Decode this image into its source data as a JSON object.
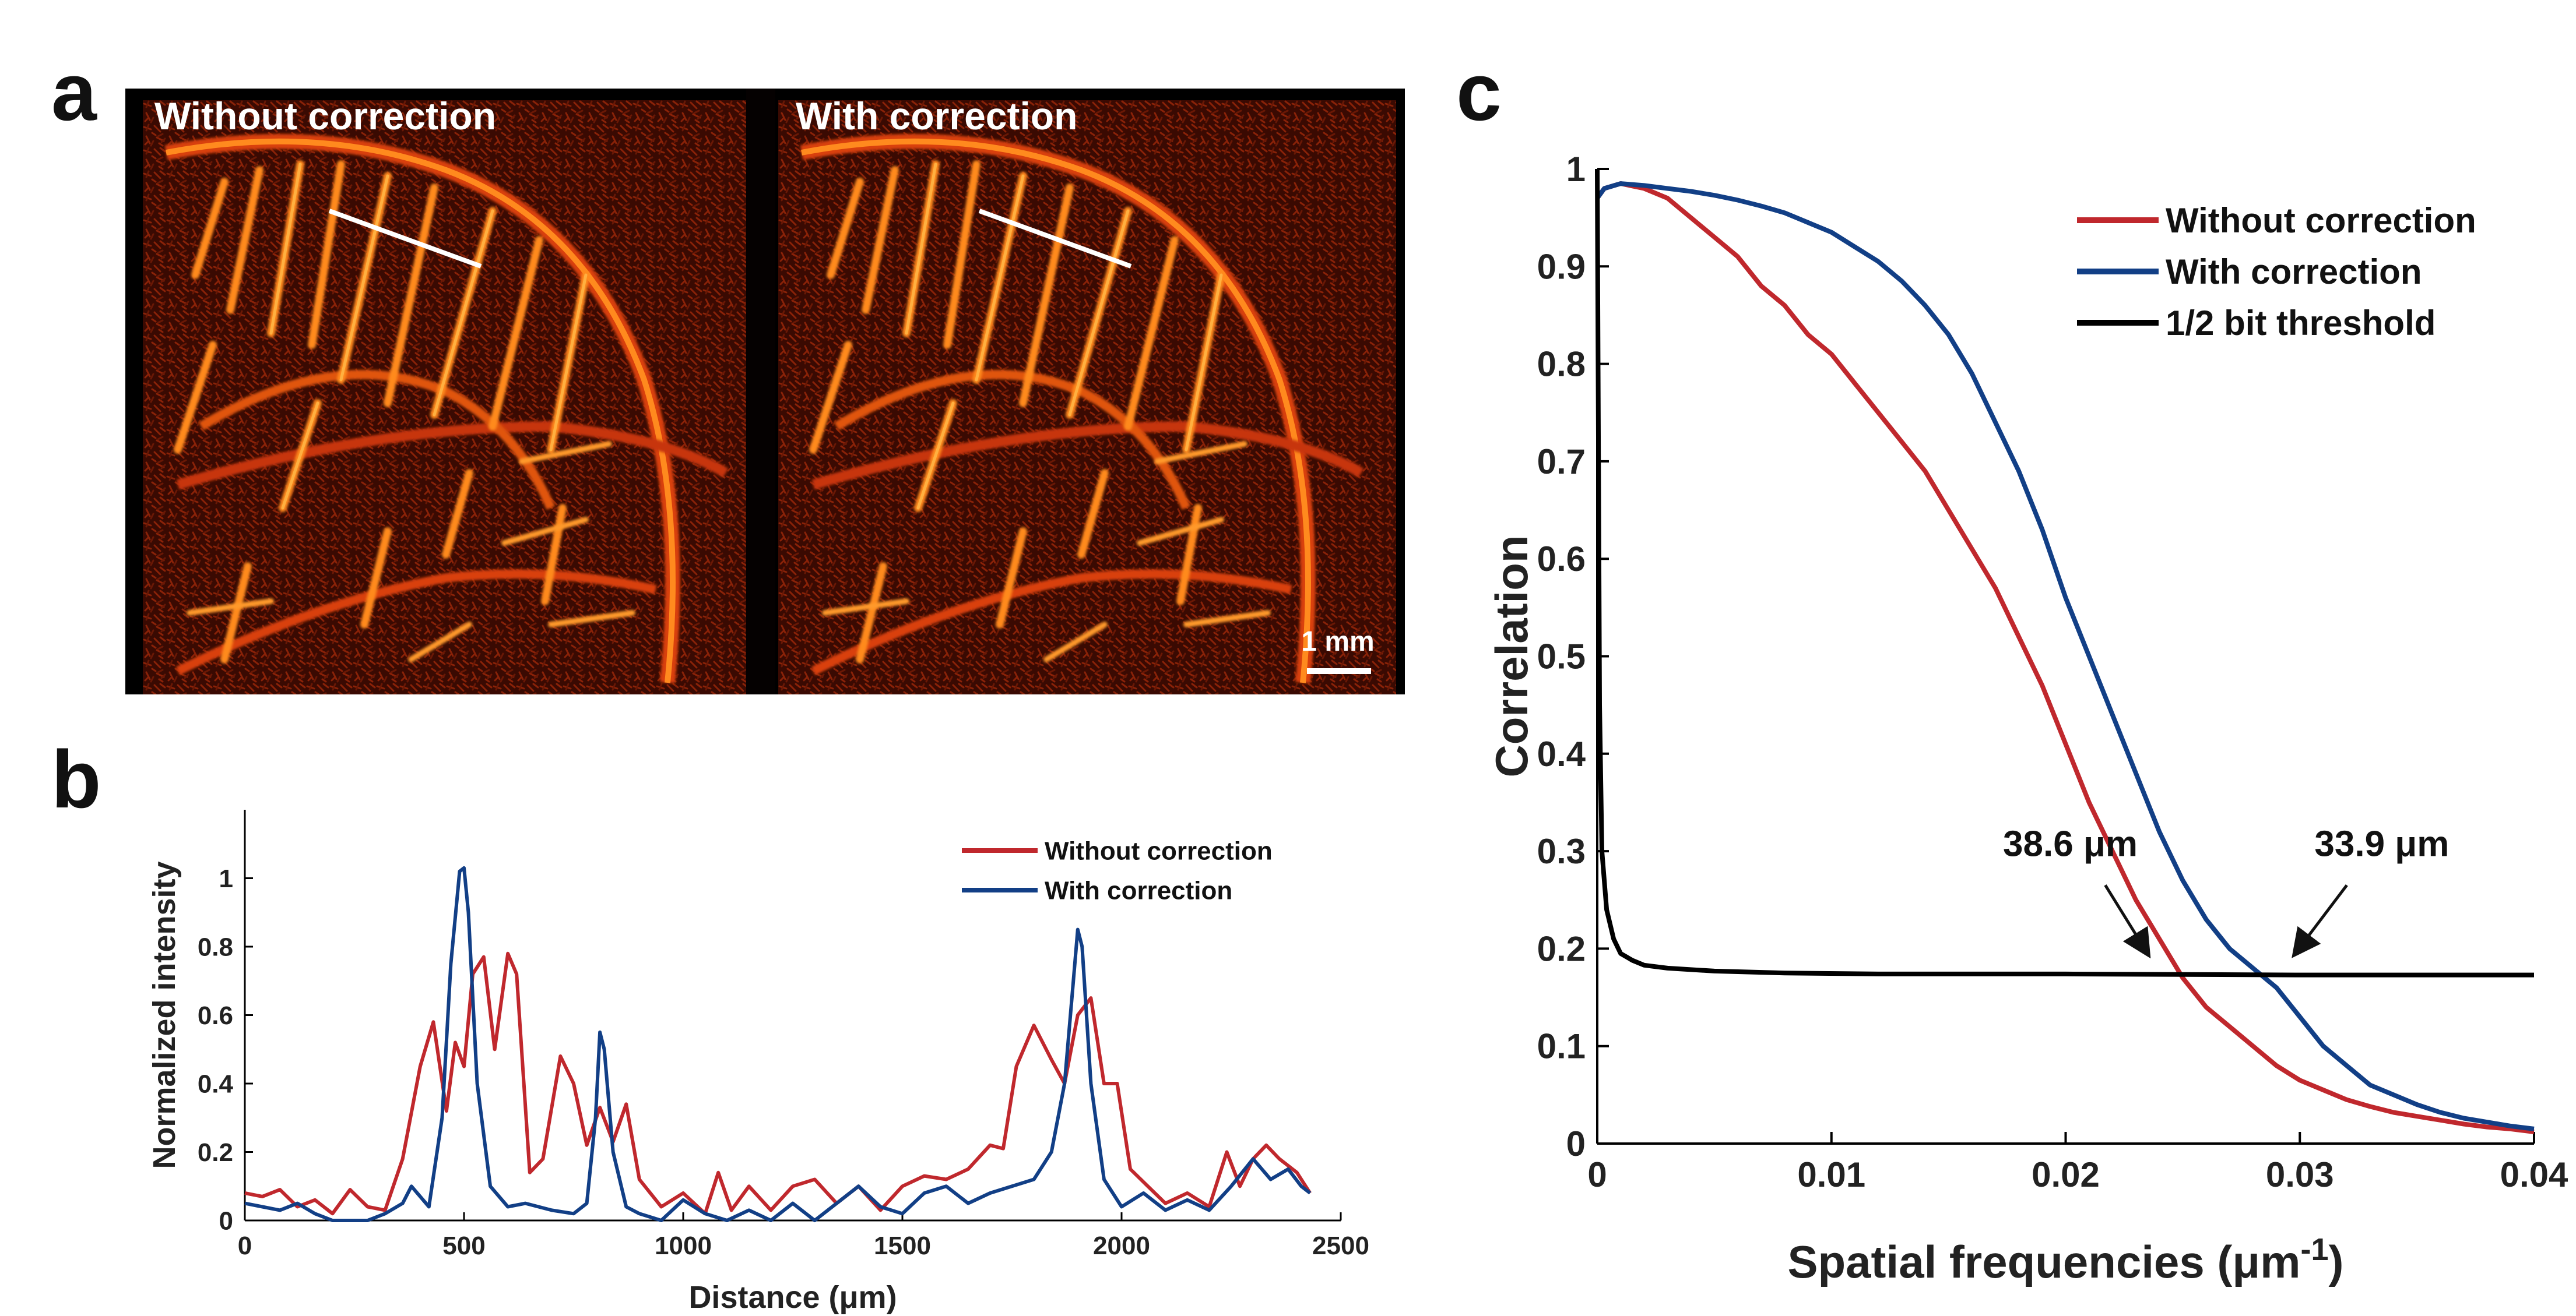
{
  "panels": {
    "a": "a",
    "b": "b",
    "c": "c"
  },
  "panel_a": {
    "left_title": "Without correction",
    "right_title": "With correction",
    "scale_bar_label": "1 mm"
  },
  "colors": {
    "without": "#c0282d",
    "with": "#123f86",
    "threshold": "#000000",
    "image_bg": "#000000",
    "vessel_hot": "#ff8a1e",
    "vessel_mid": "#d9400c",
    "vessel_dark": "#5a0f02"
  },
  "chart_data": [
    {
      "id": "b",
      "type": "line",
      "xlabel": "Distance (μm)",
      "ylabel": "Normalized intensity",
      "xlim": [
        0,
        2500
      ],
      "ylim": [
        0,
        1.2
      ],
      "xticks": [
        0,
        500,
        1000,
        1500,
        2000,
        2500
      ],
      "yticks": [
        0,
        0.2,
        0.4,
        0.6,
        0.8,
        1
      ],
      "legend_position": "top-right",
      "series": [
        {
          "name": "Without correction",
          "color": "#c0282d",
          "x": [
            0,
            40,
            80,
            120,
            160,
            200,
            240,
            280,
            320,
            360,
            400,
            430,
            460,
            480,
            500,
            520,
            545,
            570,
            600,
            620,
            650,
            680,
            720,
            750,
            780,
            810,
            840,
            870,
            900,
            950,
            1000,
            1050,
            1080,
            1110,
            1150,
            1200,
            1250,
            1300,
            1350,
            1400,
            1450,
            1500,
            1550,
            1600,
            1650,
            1700,
            1730,
            1760,
            1800,
            1840,
            1870,
            1900,
            1930,
            1960,
            1990,
            2020,
            2060,
            2100,
            2150,
            2200,
            2240,
            2270,
            2300,
            2330,
            2360,
            2400,
            2430
          ],
          "y": [
            0.08,
            0.07,
            0.09,
            0.04,
            0.06,
            0.02,
            0.09,
            0.04,
            0.03,
            0.18,
            0.45,
            0.58,
            0.32,
            0.52,
            0.45,
            0.72,
            0.77,
            0.5,
            0.78,
            0.72,
            0.14,
            0.18,
            0.48,
            0.4,
            0.22,
            0.33,
            0.23,
            0.34,
            0.12,
            0.04,
            0.08,
            0.02,
            0.14,
            0.03,
            0.1,
            0.03,
            0.1,
            0.12,
            0.05,
            0.1,
            0.03,
            0.1,
            0.13,
            0.12,
            0.15,
            0.22,
            0.21,
            0.45,
            0.57,
            0.47,
            0.4,
            0.6,
            0.65,
            0.4,
            0.4,
            0.15,
            0.1,
            0.05,
            0.08,
            0.04,
            0.2,
            0.1,
            0.18,
            0.22,
            0.18,
            0.14,
            0.08
          ]
        },
        {
          "name": "With correction",
          "color": "#123f86",
          "x": [
            0,
            40,
            80,
            120,
            160,
            200,
            240,
            280,
            320,
            360,
            380,
            420,
            450,
            470,
            490,
            500,
            510,
            530,
            560,
            600,
            640,
            700,
            750,
            780,
            800,
            810,
            820,
            840,
            870,
            900,
            950,
            1000,
            1050,
            1100,
            1150,
            1200,
            1250,
            1300,
            1350,
            1400,
            1450,
            1500,
            1550,
            1600,
            1650,
            1700,
            1750,
            1800,
            1840,
            1870,
            1890,
            1900,
            1910,
            1930,
            1960,
            2000,
            2050,
            2100,
            2150,
            2200,
            2250,
            2300,
            2340,
            2380,
            2410,
            2430
          ],
          "y": [
            0.05,
            0.04,
            0.03,
            0.05,
            0.02,
            0.0,
            0.0,
            0.0,
            0.02,
            0.05,
            0.1,
            0.04,
            0.3,
            0.75,
            1.02,
            1.03,
            0.9,
            0.4,
            0.1,
            0.04,
            0.05,
            0.03,
            0.02,
            0.05,
            0.3,
            0.55,
            0.5,
            0.2,
            0.04,
            0.02,
            0.0,
            0.06,
            0.02,
            0.0,
            0.03,
            0.0,
            0.05,
            0.0,
            0.05,
            0.1,
            0.04,
            0.02,
            0.08,
            0.1,
            0.05,
            0.08,
            0.1,
            0.12,
            0.2,
            0.4,
            0.7,
            0.85,
            0.8,
            0.4,
            0.12,
            0.04,
            0.08,
            0.03,
            0.06,
            0.03,
            0.1,
            0.18,
            0.12,
            0.15,
            0.1,
            0.08
          ]
        }
      ]
    },
    {
      "id": "c",
      "type": "line",
      "xlabel": "Spatial frequencies (μm",
      "xlabel_sup": "-1",
      "xlabel_close": ")",
      "ylabel": "Correlation",
      "xlim": [
        0,
        0.04
      ],
      "ylim": [
        0,
        1
      ],
      "xticks": [
        0,
        0.01,
        0.02,
        0.03,
        0.04
      ],
      "yticks": [
        0,
        0.1,
        0.2,
        0.3,
        0.4,
        0.5,
        0.6,
        0.7,
        0.8,
        0.9,
        1
      ],
      "legend_position": "top-right",
      "series": [
        {
          "name": "Without correction",
          "color": "#c0282d",
          "x": [
            0,
            0.0003,
            0.001,
            0.002,
            0.003,
            0.004,
            0.005,
            0.006,
            0.007,
            0.008,
            0.009,
            0.01,
            0.011,
            0.012,
            0.013,
            0.014,
            0.015,
            0.016,
            0.017,
            0.018,
            0.019,
            0.02,
            0.021,
            0.022,
            0.023,
            0.024,
            0.025,
            0.026,
            0.027,
            0.028,
            0.029,
            0.03,
            0.031,
            0.032,
            0.033,
            0.034,
            0.035,
            0.036,
            0.037,
            0.038,
            0.039,
            0.04
          ],
          "y": [
            0.97,
            0.98,
            0.985,
            0.98,
            0.97,
            0.95,
            0.93,
            0.91,
            0.88,
            0.86,
            0.83,
            0.81,
            0.78,
            0.75,
            0.72,
            0.69,
            0.65,
            0.61,
            0.57,
            0.52,
            0.47,
            0.41,
            0.35,
            0.3,
            0.25,
            0.21,
            0.17,
            0.14,
            0.12,
            0.1,
            0.08,
            0.065,
            0.055,
            0.045,
            0.038,
            0.032,
            0.028,
            0.024,
            0.02,
            0.017,
            0.015,
            0.012
          ]
        },
        {
          "name": "With correction",
          "color": "#123f86",
          "x": [
            0,
            0.0003,
            0.001,
            0.002,
            0.003,
            0.004,
            0.005,
            0.006,
            0.007,
            0.008,
            0.009,
            0.01,
            0.011,
            0.012,
            0.013,
            0.014,
            0.015,
            0.016,
            0.017,
            0.018,
            0.019,
            0.02,
            0.021,
            0.022,
            0.023,
            0.024,
            0.025,
            0.026,
            0.027,
            0.028,
            0.029,
            0.03,
            0.031,
            0.032,
            0.033,
            0.034,
            0.035,
            0.036,
            0.037,
            0.038,
            0.039,
            0.04
          ],
          "y": [
            0.97,
            0.98,
            0.985,
            0.983,
            0.98,
            0.977,
            0.973,
            0.968,
            0.962,
            0.955,
            0.945,
            0.935,
            0.92,
            0.905,
            0.885,
            0.86,
            0.83,
            0.79,
            0.74,
            0.69,
            0.63,
            0.56,
            0.5,
            0.44,
            0.38,
            0.32,
            0.27,
            0.23,
            0.2,
            0.18,
            0.16,
            0.13,
            0.1,
            0.08,
            0.06,
            0.05,
            0.04,
            0.032,
            0.026,
            0.022,
            0.018,
            0.015
          ]
        },
        {
          "name": "1/2 bit threshold",
          "color": "#000000",
          "x": [
            0,
            0.0001,
            0.0002,
            0.0004,
            0.0007,
            0.001,
            0.0015,
            0.002,
            0.003,
            0.005,
            0.008,
            0.012,
            0.02,
            0.03,
            0.04
          ],
          "y": [
            1.0,
            0.45,
            0.3,
            0.24,
            0.21,
            0.195,
            0.188,
            0.183,
            0.18,
            0.177,
            0.175,
            0.174,
            0.174,
            0.173,
            0.173
          ]
        }
      ],
      "annotations": [
        {
          "text": "38.6 μm",
          "x": 0.0202,
          "y": 0.295,
          "arrow_to": [
            0.0235,
            0.195
          ]
        },
        {
          "text": "33.9 μm",
          "x": 0.0335,
          "y": 0.295,
          "arrow_to": [
            0.0298,
            0.195
          ]
        }
      ]
    }
  ]
}
